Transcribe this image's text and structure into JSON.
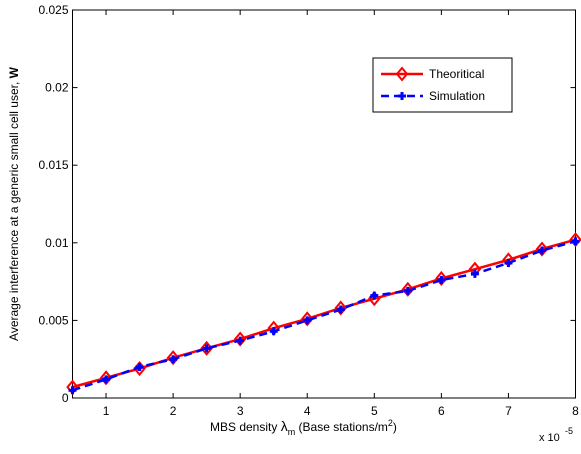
{
  "chart_data": {
    "type": "line",
    "ylabel": {
      "text": "Average interference at a generic small cell user, ",
      "bold": "W"
    },
    "xlabel": {
      "prefix": "MBS density ",
      "symbol": "λ",
      "sub": "m",
      "middle": " (Base stations/m",
      "sup": "2",
      "suffix": ")"
    },
    "x_exponent": {
      "base": "x 10",
      "power": "-5"
    },
    "x": [
      0.5,
      1,
      1.5,
      2,
      2.5,
      3,
      3.5,
      4,
      4.5,
      5,
      5.5,
      6,
      6.5,
      7,
      7.5,
      8
    ],
    "series": [
      {
        "name": "Theoritical",
        "color": "#ff0000",
        "marker": "diamond",
        "dash": false,
        "values": [
          0.0007,
          0.0013,
          0.0019,
          0.0026,
          0.0032,
          0.0038,
          0.0045,
          0.0051,
          0.0058,
          0.0064,
          0.007,
          0.0077,
          0.0083,
          0.0089,
          0.0096,
          0.0102
        ]
      },
      {
        "name": "Simulation",
        "color": "#0000ff",
        "marker": "plus",
        "dash": true,
        "values": [
          0.0005,
          0.0012,
          0.002,
          0.0025,
          0.0032,
          0.0037,
          0.0043,
          0.005,
          0.0057,
          0.0066,
          0.0069,
          0.0076,
          0.008,
          0.0087,
          0.0095,
          0.0101
        ]
      }
    ],
    "xlim": [
      0.5,
      8
    ],
    "ylim": [
      0,
      0.025
    ],
    "xticks": [
      1,
      2,
      3,
      4,
      5,
      6,
      7,
      8
    ],
    "yticks": [
      0,
      0.005,
      0.01,
      0.015,
      0.02,
      0.025
    ],
    "grid": false,
    "legend": "upper right"
  }
}
